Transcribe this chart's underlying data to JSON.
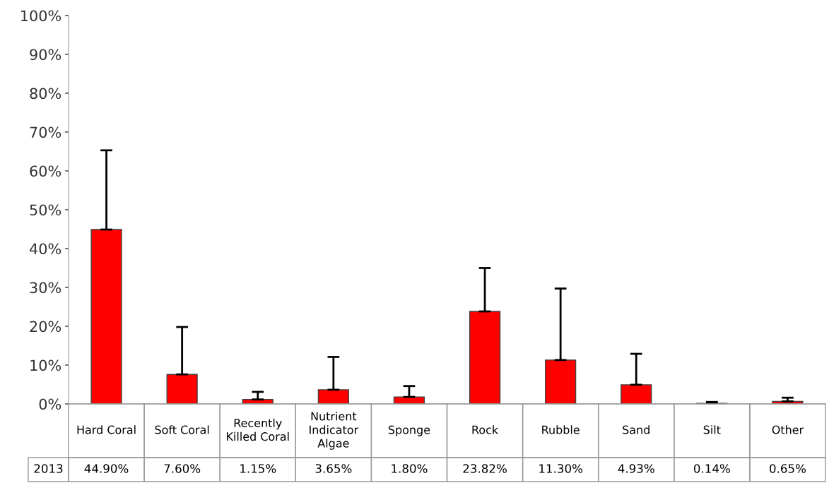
{
  "chart_data": {
    "type": "bar",
    "categories": [
      "Hard Coral",
      "Soft Coral",
      "Recently Killed Coral",
      "Nutrient Indicator Algae",
      "Sponge",
      "Rock",
      "Rubble",
      "Sand",
      "Silt",
      "Other"
    ],
    "series": [
      {
        "name": "2013",
        "color": "#ff0000",
        "values": [
          44.9,
          7.6,
          1.15,
          3.65,
          1.8,
          23.82,
          11.3,
          4.93,
          0.14,
          0.65
        ],
        "value_labels": [
          "44.90%",
          "7.60%",
          "1.15%",
          "3.65%",
          "1.80%",
          "23.82%",
          "11.30%",
          "4.93%",
          "0.14%",
          "0.65%"
        ],
        "errors": [
          [
            44.9,
            65.3
          ],
          [
            7.6,
            19.8
          ],
          [
            1.15,
            3.1
          ],
          [
            3.65,
            12.1
          ],
          [
            1.8,
            4.6
          ],
          [
            23.82,
            35.0
          ],
          [
            11.3,
            29.7
          ],
          [
            4.93,
            12.9
          ],
          [
            0.14,
            0.5
          ],
          [
            0.65,
            1.6
          ]
        ]
      }
    ],
    "ylim": [
      0,
      100
    ],
    "yticks": [
      {
        "value": 0,
        "label": "0%"
      },
      {
        "value": 10,
        "label": "10%"
      },
      {
        "value": 20,
        "label": "20%"
      },
      {
        "value": 30,
        "label": "30%"
      },
      {
        "value": 40,
        "label": "40%"
      },
      {
        "value": 50,
        "label": "50%"
      },
      {
        "value": 60,
        "label": "60%"
      },
      {
        "value": 70,
        "label": "70%"
      },
      {
        "value": 80,
        "label": "80%"
      },
      {
        "value": 90,
        "label": "90%"
      },
      {
        "value": 100,
        "label": "100%"
      }
    ],
    "grid": false,
    "legend": false
  }
}
